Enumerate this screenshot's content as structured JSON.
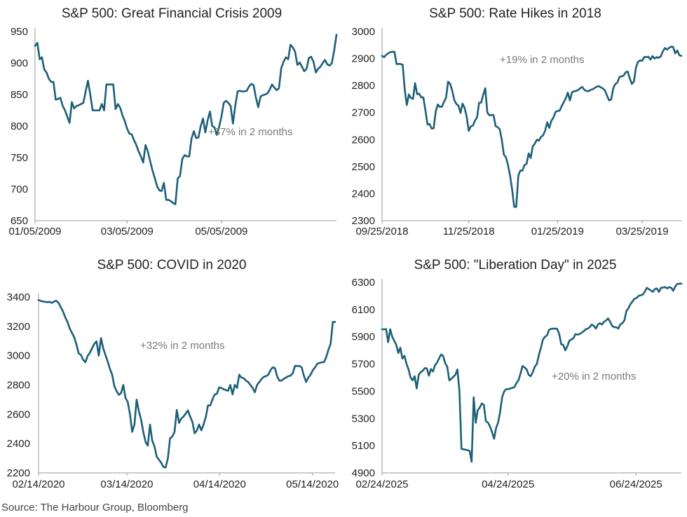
{
  "source": "Source: The Harbour Group, Bloomberg",
  "colors": {
    "line": "#1d5f78",
    "text": "#222222",
    "annotation": "#7a7a7a",
    "axis": "#9a9a9a"
  },
  "chart_data": [
    {
      "type": "line",
      "title": "S&P 500: Great Financial Crisis 2009",
      "annotation": "+37% in 2 months",
      "xlabel": "",
      "ylabel": "",
      "ylim": [
        650,
        950
      ],
      "yticks": [
        650,
        700,
        750,
        800,
        850,
        900,
        950
      ],
      "xlim": [
        0,
        131
      ],
      "xtick_positions": [
        0,
        40,
        81
      ],
      "xtick_labels": [
        "01/05/2009",
        "03/05/2009",
        "05/05/2009"
      ],
      "series": [
        {
          "name": "S&P 500",
          "values": [
            927,
            932,
            906,
            909,
            890,
            885,
            875,
            870,
            870,
            842,
            843,
            845,
            832,
            825,
            815,
            805,
            838,
            828,
            832,
            833,
            835,
            837,
            855,
            872,
            850,
            825,
            825,
            825,
            825,
            835,
            825,
            866,
            866,
            866,
            866,
            827,
            835,
            829,
            817,
            808,
            796,
            788,
            787,
            778,
            770,
            760,
            752,
            742,
            770,
            760,
            745,
            730,
            718,
            705,
            698,
            697,
            710,
            683,
            683,
            681,
            678,
            676,
            717,
            721,
            748,
            754,
            752,
            752,
            780,
            792,
            781,
            782,
            800,
            812,
            790,
            809,
            823,
            800,
            798,
            786,
            799,
            815,
            837,
            840,
            837,
            832,
            804,
            832,
            855,
            856,
            855,
            855,
            856,
            863,
            867,
            865,
            845,
            830,
            847,
            849,
            850,
            852,
            858,
            866,
            861,
            857,
            860,
            892,
            902,
            909,
            906,
            929,
            925,
            918,
            897,
            901,
            894,
            887,
            891,
            908,
            910,
            902,
            885,
            891,
            894,
            900,
            905,
            898,
            896,
            900,
            920,
            945
          ]
        }
      ]
    },
    {
      "type": "line",
      "title": "S&P 500: Rate Hikes in 2018",
      "annotation": "+19% in 2 months",
      "xlabel": "",
      "ylabel": "",
      "ylim": [
        2300,
        3000
      ],
      "yticks": [
        2300,
        2400,
        2500,
        2600,
        2700,
        2800,
        2900,
        3000
      ],
      "xlim": [
        0,
        145
      ],
      "xtick_positions": [
        0,
        42,
        85,
        126
      ],
      "xtick_labels": [
        "09/25/2018",
        "11/25/2018",
        "01/25/2019",
        "03/25/2019"
      ],
      "series": [
        {
          "name": "S&P 500",
          "values": [
            2910,
            2905,
            2914,
            2919,
            2924,
            2925,
            2925,
            2880,
            2880,
            2880,
            2877,
            2785,
            2728,
            2767,
            2754,
            2751,
            2809,
            2768,
            2770,
            2756,
            2756,
            2710,
            2656,
            2658,
            2641,
            2642,
            2705,
            2730,
            2721,
            2722,
            2740,
            2755,
            2814,
            2806,
            2781,
            2746,
            2732,
            2726,
            2699,
            2733,
            2717,
            2685,
            2632,
            2649,
            2652,
            2670,
            2682,
            2736,
            2737,
            2766,
            2790,
            2700,
            2690,
            2691,
            2691,
            2650,
            2646,
            2638,
            2600,
            2545,
            2535,
            2507,
            2467,
            2416,
            2351,
            2351,
            2467,
            2486,
            2485,
            2506,
            2510,
            2549,
            2532,
            2575,
            2585,
            2600,
            2596,
            2610,
            2616,
            2633,
            2664,
            2643,
            2670,
            2681,
            2702,
            2706,
            2707,
            2724,
            2738,
            2753,
            2774,
            2745,
            2775,
            2779,
            2780,
            2784,
            2790,
            2795,
            2784,
            2780,
            2779,
            2784,
            2786,
            2791,
            2796,
            2798,
            2793,
            2789,
            2782,
            2762,
            2745,
            2749,
            2790,
            2806,
            2811,
            2832,
            2834,
            2837,
            2849,
            2852,
            2826,
            2806,
            2815,
            2867,
            2888,
            2893,
            2892,
            2906,
            2905,
            2907,
            2896,
            2909,
            2900,
            2905,
            2903,
            2908,
            2926,
            2939,
            2933,
            2939,
            2944,
            2943,
            2919,
            2930,
            2912,
            2910
          ]
        }
      ]
    },
    {
      "type": "line",
      "title": "S&P 500: COVID in 2020",
      "annotation": "+32% in 2 months",
      "xlabel": "",
      "ylabel": "",
      "ylim": [
        2200,
        3400
      ],
      "yticks": [
        2200,
        2400,
        2600,
        2800,
        3000,
        3200,
        3400
      ],
      "xlim": [
        0,
        131
      ],
      "xtick_positions": [
        0,
        39,
        80,
        121
      ],
      "xtick_labels": [
        "02/14/2020",
        "03/14/2020",
        "04/14/2020",
        "05/14/2020"
      ],
      "series": [
        {
          "name": "S&P 500",
          "values": [
            3380,
            3373,
            3370,
            3367,
            3365,
            3367,
            3360,
            3370,
            3374,
            3360,
            3330,
            3300,
            3260,
            3230,
            3185,
            3155,
            3125,
            3075,
            3015,
            3005,
            2972,
            2955,
            2998,
            3020,
            3050,
            3080,
            3098,
            3000,
            3120,
            3050,
            3005,
            2960,
            2910,
            2870,
            2793,
            2758,
            2733,
            2744,
            2800,
            2711,
            2685,
            2600,
            2480,
            2530,
            2700,
            2620,
            2563,
            2477,
            2410,
            2386,
            2530,
            2420,
            2380,
            2310,
            2290,
            2270,
            2240,
            2237,
            2300,
            2435,
            2448,
            2480,
            2630,
            2541,
            2570,
            2584,
            2605,
            2626,
            2584,
            2547,
            2470,
            2489,
            2530,
            2490,
            2530,
            2580,
            2660,
            2660,
            2702,
            2735,
            2740,
            2783,
            2780,
            2770,
            2765,
            2760,
            2800,
            2736,
            2800,
            2780,
            2870,
            2850,
            2846,
            2830,
            2820,
            2800,
            2780,
            2750,
            2800,
            2820,
            2840,
            2855,
            2860,
            2870,
            2900,
            2920,
            2915,
            2860,
            2829,
            2830,
            2842,
            2850,
            2860,
            2863,
            2880,
            2930,
            2929,
            2930,
            2920,
            2863,
            2820,
            2850,
            2870,
            2900,
            2920,
            2945,
            2950,
            2955,
            2955,
            2990,
            3040,
            3080,
            3230,
            3230
          ]
        }
      ]
    },
    {
      "type": "line",
      "title": "S&P 500: \"Liberation Day\" in 2025",
      "annotation": "+20% in 2 months",
      "xlabel": "",
      "ylabel": "",
      "ylim": [
        4900,
        6300
      ],
      "yticks": [
        4900,
        5100,
        5300,
        5500,
        5700,
        5900,
        6100,
        6300
      ],
      "xlim": [
        0,
        145
      ],
      "xtick_positions": [
        0,
        61,
        123
      ],
      "xtick_labels": [
        "02/24/2025",
        "04/24/2025",
        "06/24/2025"
      ],
      "series": [
        {
          "name": "S&P 500",
          "values": [
            5955,
            5955,
            5956,
            5860,
            5955,
            5900,
            5870,
            5840,
            5780,
            5820,
            5740,
            5760,
            5700,
            5660,
            5600,
            5580,
            5610,
            5520,
            5620,
            5640,
            5650,
            5670,
            5667,
            5614,
            5663,
            5645,
            5690,
            5710,
            5740,
            5770,
            5760,
            5706,
            5680,
            5580,
            5590,
            5606,
            5620,
            5660,
            5500,
            5075,
            5074,
            5070,
            5067,
            5062,
            4982,
            5456,
            5268,
            5360,
            5380,
            5410,
            5400,
            5280,
            5270,
            5240,
            5200,
            5150,
            5230,
            5270,
            5350,
            5459,
            5500,
            5515,
            5515,
            5520,
            5525,
            5530,
            5560,
            5580,
            5630,
            5685,
            5675,
            5660,
            5620,
            5610,
            5640,
            5680,
            5700,
            5765,
            5820,
            5880,
            5900,
            5910,
            5950,
            5958,
            5960,
            5960,
            5958,
            5920,
            5845,
            5840,
            5800,
            5830,
            5870,
            5880,
            5890,
            5920,
            5915,
            5920,
            5930,
            5940,
            5955,
            5960,
            5970,
            5990,
            5980,
            5960,
            5990,
            6000,
            5990,
            6010,
            6020,
            6035,
            6010,
            5980,
            5970,
            5970,
            5960,
            5990,
            6000,
            6020,
            6090,
            6110,
            6140,
            6160,
            6180,
            6185,
            6200,
            6205,
            6210,
            6230,
            6260,
            6250,
            6240,
            6230,
            6250,
            6255,
            6230,
            6260,
            6262,
            6265,
            6255,
            6265,
            6260,
            6238,
            6270,
            6288,
            6290,
            6290
          ]
        }
      ]
    }
  ]
}
